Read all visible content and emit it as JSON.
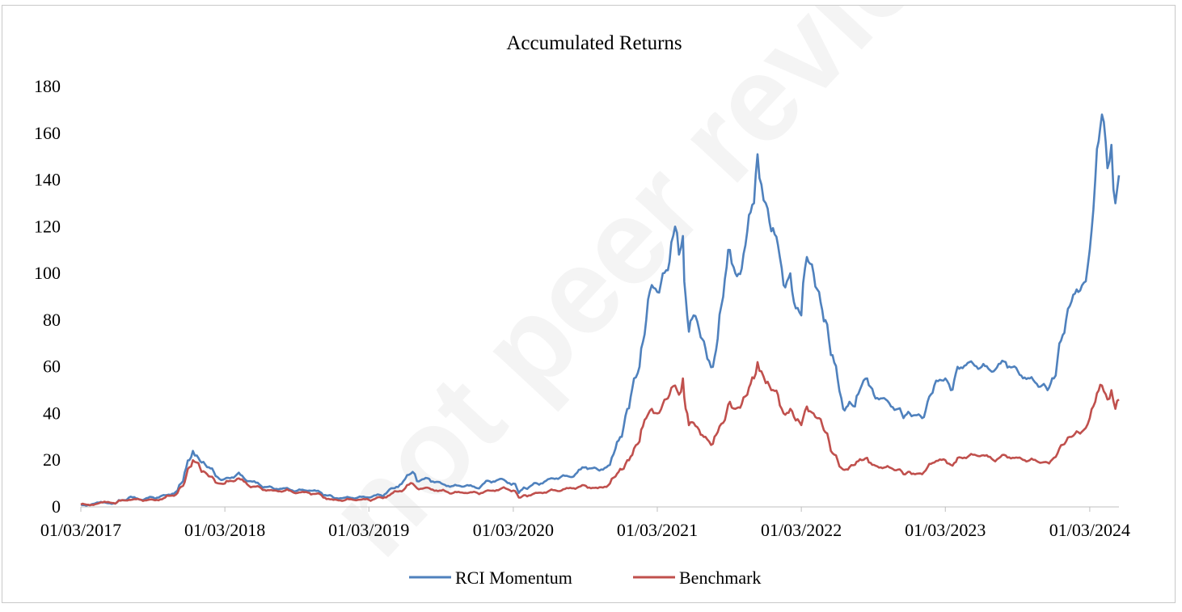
{
  "watermark": "not peer reviewed",
  "chart_data": {
    "type": "line",
    "title": "Accumulated Returns",
    "xlabel": "",
    "ylabel": "",
    "x_range": [
      "01/03/2017",
      "14/05/2024"
    ],
    "ylim": [
      0,
      180
    ],
    "y_ticks": [
      0,
      20,
      40,
      60,
      80,
      100,
      120,
      140,
      160,
      180
    ],
    "x_tick_labels": [
      "01/03/2017",
      "01/03/2018",
      "01/03/2019",
      "01/03/2020",
      "01/03/2021",
      "01/03/2022",
      "01/03/2023",
      "01/03/2024"
    ],
    "grid": false,
    "legend": "bottom",
    "colors": {
      "RCI Momentum": "#4f81bd",
      "Benchmark": "#c0504d"
    },
    "series": [
      {
        "name": "RCI Momentum",
        "points": [
          [
            "01/03/2017",
            1
          ],
          [
            "01/06/2017",
            2
          ],
          [
            "01/07/2017",
            4
          ],
          [
            "01/08/2017",
            3
          ],
          [
            "01/09/2017",
            4
          ],
          [
            "01/10/2017",
            5
          ],
          [
            "01/11/2017",
            7
          ],
          [
            "15/11/2017",
            11
          ],
          [
            "01/12/2017",
            20
          ],
          [
            "10/12/2017",
            24
          ],
          [
            "20/12/2017",
            22
          ],
          [
            "01/01/2018",
            19
          ],
          [
            "15/01/2018",
            17
          ],
          [
            "01/02/2018",
            15
          ],
          [
            "15/02/2018",
            12
          ],
          [
            "01/03/2018",
            12
          ],
          [
            "01/04/2018",
            14
          ],
          [
            "01/05/2018",
            11
          ],
          [
            "01/06/2018",
            9
          ],
          [
            "01/07/2018",
            8
          ],
          [
            "01/08/2018",
            8
          ],
          [
            "01/09/2018",
            7
          ],
          [
            "01/10/2018",
            7
          ],
          [
            "01/11/2018",
            6
          ],
          [
            "01/12/2018",
            4
          ],
          [
            "01/01/2019",
            4
          ],
          [
            "01/02/2019",
            4
          ],
          [
            "01/03/2019",
            4
          ],
          [
            "01/04/2019",
            5
          ],
          [
            "01/05/2019",
            8
          ],
          [
            "01/06/2019",
            12
          ],
          [
            "20/06/2019",
            15
          ],
          [
            "01/07/2019",
            11
          ],
          [
            "01/08/2019",
            12
          ],
          [
            "01/09/2019",
            10
          ],
          [
            "01/10/2019",
            9
          ],
          [
            "01/11/2019",
            9
          ],
          [
            "01/12/2019",
            8
          ],
          [
            "01/01/2020",
            11
          ],
          [
            "01/02/2020",
            12
          ],
          [
            "01/03/2020",
            10
          ],
          [
            "15/03/2020",
            6
          ],
          [
            "01/04/2020",
            8
          ],
          [
            "01/05/2020",
            10
          ],
          [
            "01/06/2020",
            12
          ],
          [
            "01/07/2020",
            13
          ],
          [
            "01/08/2020",
            13
          ],
          [
            "01/09/2020",
            17
          ],
          [
            "01/10/2020",
            16
          ],
          [
            "01/11/2020",
            18
          ],
          [
            "15/11/2020",
            25
          ],
          [
            "01/12/2020",
            30
          ],
          [
            "15/12/2020",
            42
          ],
          [
            "01/01/2021",
            55
          ],
          [
            "15/01/2021",
            60
          ],
          [
            "01/02/2021",
            80
          ],
          [
            "15/02/2021",
            95
          ],
          [
            "01/03/2021",
            92
          ],
          [
            "15/03/2021",
            100
          ],
          [
            "01/04/2021",
            105
          ],
          [
            "15/04/2021",
            120
          ],
          [
            "25/04/2021",
            108
          ],
          [
            "05/05/2021",
            116
          ],
          [
            "12/05/2021",
            90
          ],
          [
            "20/05/2021",
            75
          ],
          [
            "01/06/2021",
            82
          ],
          [
            "15/06/2021",
            76
          ],
          [
            "01/07/2021",
            68
          ],
          [
            "20/07/2021",
            60
          ],
          [
            "01/08/2021",
            72
          ],
          [
            "15/08/2021",
            90
          ],
          [
            "01/09/2021",
            110
          ],
          [
            "15/09/2021",
            100
          ],
          [
            "01/10/2021",
            102
          ],
          [
            "15/10/2021",
            118
          ],
          [
            "01/11/2021",
            130
          ],
          [
            "10/11/2021",
            151
          ],
          [
            "20/11/2021",
            138
          ],
          [
            "01/12/2021",
            130
          ],
          [
            "15/12/2021",
            118
          ],
          [
            "01/01/2022",
            112
          ],
          [
            "15/01/2022",
            95
          ],
          [
            "01/02/2022",
            100
          ],
          [
            "15/02/2022",
            85
          ],
          [
            "01/03/2022",
            82
          ],
          [
            "15/03/2022",
            107
          ],
          [
            "01/04/2022",
            100
          ],
          [
            "15/04/2022",
            92
          ],
          [
            "01/05/2022",
            80
          ],
          [
            "15/05/2022",
            65
          ],
          [
            "01/06/2022",
            55
          ],
          [
            "15/06/2022",
            42
          ],
          [
            "01/07/2022",
            45
          ],
          [
            "15/07/2022",
            43
          ],
          [
            "01/08/2022",
            52
          ],
          [
            "15/08/2022",
            55
          ],
          [
            "01/09/2022",
            48
          ],
          [
            "01/10/2022",
            46
          ],
          [
            "01/11/2022",
            42
          ],
          [
            "15/11/2022",
            38
          ],
          [
            "01/12/2022",
            40
          ],
          [
            "01/01/2023",
            38
          ],
          [
            "15/01/2023",
            45
          ],
          [
            "01/02/2023",
            52
          ],
          [
            "01/03/2023",
            55
          ],
          [
            "15/03/2023",
            50
          ],
          [
            "01/04/2023",
            60
          ],
          [
            "01/05/2023",
            62
          ],
          [
            "01/06/2023",
            60
          ],
          [
            "01/07/2023",
            58
          ],
          [
            "01/08/2023",
            62
          ],
          [
            "01/09/2023",
            58
          ],
          [
            "01/10/2023",
            55
          ],
          [
            "01/11/2023",
            52
          ],
          [
            "15/11/2023",
            50
          ],
          [
            "01/12/2023",
            55
          ],
          [
            "15/12/2023",
            70
          ],
          [
            "01/01/2024",
            80
          ],
          [
            "15/01/2024",
            88
          ],
          [
            "01/02/2024",
            92
          ],
          [
            "15/02/2024",
            96
          ],
          [
            "01/03/2024",
            110
          ],
          [
            "15/03/2024",
            140
          ],
          [
            "01/04/2024",
            168
          ],
          [
            "15/04/2024",
            145
          ],
          [
            "25/04/2024",
            155
          ],
          [
            "05/05/2024",
            130
          ],
          [
            "14/05/2024",
            142
          ]
        ]
      },
      {
        "name": "Benchmark",
        "points": [
          [
            "01/03/2017",
            1
          ],
          [
            "01/06/2017",
            2
          ],
          [
            "01/07/2017",
            3
          ],
          [
            "01/08/2017",
            3
          ],
          [
            "01/09/2017",
            3
          ],
          [
            "01/10/2017",
            4
          ],
          [
            "01/11/2017",
            6
          ],
          [
            "15/11/2017",
            9
          ],
          [
            "01/12/2017",
            17
          ],
          [
            "10/12/2017",
            20
          ],
          [
            "20/12/2017",
            19
          ],
          [
            "01/01/2018",
            15
          ],
          [
            "15/01/2018",
            14
          ],
          [
            "01/02/2018",
            12
          ],
          [
            "15/02/2018",
            10
          ],
          [
            "01/03/2018",
            10
          ],
          [
            "01/04/2018",
            12
          ],
          [
            "01/05/2018",
            9
          ],
          [
            "01/06/2018",
            8
          ],
          [
            "01/07/2018",
            7
          ],
          [
            "01/08/2018",
            7
          ],
          [
            "01/09/2018",
            6
          ],
          [
            "01/10/2018",
            6
          ],
          [
            "01/11/2018",
            5
          ],
          [
            "01/12/2018",
            3
          ],
          [
            "01/01/2019",
            3
          ],
          [
            "01/02/2019",
            3
          ],
          [
            "01/03/2019",
            3
          ],
          [
            "01/04/2019",
            4
          ],
          [
            "01/05/2019",
            6
          ],
          [
            "01/06/2019",
            8
          ],
          [
            "20/06/2019",
            10
          ],
          [
            "01/07/2019",
            8
          ],
          [
            "01/08/2019",
            8
          ],
          [
            "01/09/2019",
            7
          ],
          [
            "01/10/2019",
            6
          ],
          [
            "01/11/2019",
            6
          ],
          [
            "01/12/2019",
            6
          ],
          [
            "01/01/2020",
            7
          ],
          [
            "01/02/2020",
            8
          ],
          [
            "01/03/2020",
            7
          ],
          [
            "15/03/2020",
            4
          ],
          [
            "01/04/2020",
            5
          ],
          [
            "01/05/2020",
            6
          ],
          [
            "01/06/2020",
            7
          ],
          [
            "01/07/2020",
            7
          ],
          [
            "01/08/2020",
            8
          ],
          [
            "01/09/2020",
            9
          ],
          [
            "01/10/2020",
            8
          ],
          [
            "01/11/2020",
            10
          ],
          [
            "15/11/2020",
            13
          ],
          [
            "01/12/2020",
            16
          ],
          [
            "15/12/2020",
            20
          ],
          [
            "01/01/2021",
            25
          ],
          [
            "15/01/2021",
            28
          ],
          [
            "01/02/2021",
            38
          ],
          [
            "15/02/2021",
            42
          ],
          [
            "01/03/2021",
            40
          ],
          [
            "15/03/2021",
            44
          ],
          [
            "01/04/2021",
            48
          ],
          [
            "15/04/2021",
            52
          ],
          [
            "25/04/2021",
            48
          ],
          [
            "05/05/2021",
            55
          ],
          [
            "12/05/2021",
            42
          ],
          [
            "20/05/2021",
            35
          ],
          [
            "01/06/2021",
            36
          ],
          [
            "15/06/2021",
            33
          ],
          [
            "01/07/2021",
            30
          ],
          [
            "20/07/2021",
            27
          ],
          [
            "01/08/2021",
            32
          ],
          [
            "15/08/2021",
            36
          ],
          [
            "01/09/2021",
            45
          ],
          [
            "15/09/2021",
            42
          ],
          [
            "01/10/2021",
            44
          ],
          [
            "15/10/2021",
            48
          ],
          [
            "01/11/2021",
            55
          ],
          [
            "10/11/2021",
            62
          ],
          [
            "20/11/2021",
            58
          ],
          [
            "01/12/2021",
            53
          ],
          [
            "15/12/2021",
            50
          ],
          [
            "01/01/2022",
            48
          ],
          [
            "15/01/2022",
            40
          ],
          [
            "01/02/2022",
            42
          ],
          [
            "15/02/2022",
            37
          ],
          [
            "01/03/2022",
            35
          ],
          [
            "15/03/2022",
            43
          ],
          [
            "01/04/2022",
            40
          ],
          [
            "15/04/2022",
            38
          ],
          [
            "01/05/2022",
            32
          ],
          [
            "15/05/2022",
            24
          ],
          [
            "01/06/2022",
            20
          ],
          [
            "15/06/2022",
            16
          ],
          [
            "01/07/2022",
            17
          ],
          [
            "15/07/2022",
            18
          ],
          [
            "01/08/2022",
            20
          ],
          [
            "15/08/2022",
            21
          ],
          [
            "01/09/2022",
            18
          ],
          [
            "01/10/2022",
            17
          ],
          [
            "01/11/2022",
            16
          ],
          [
            "15/11/2022",
            14
          ],
          [
            "01/12/2022",
            15
          ],
          [
            "01/01/2023",
            14
          ],
          [
            "15/01/2023",
            17
          ],
          [
            "01/02/2023",
            19
          ],
          [
            "01/03/2023",
            20
          ],
          [
            "15/03/2023",
            18
          ],
          [
            "01/04/2023",
            21
          ],
          [
            "01/05/2023",
            22
          ],
          [
            "01/06/2023",
            22
          ],
          [
            "01/07/2023",
            20
          ],
          [
            "01/08/2023",
            22
          ],
          [
            "01/09/2023",
            21
          ],
          [
            "01/10/2023",
            20
          ],
          [
            "01/11/2023",
            19
          ],
          [
            "15/11/2023",
            19
          ],
          [
            "01/12/2023",
            21
          ],
          [
            "15/12/2023",
            25
          ],
          [
            "01/01/2024",
            28
          ],
          [
            "15/01/2024",
            30
          ],
          [
            "01/02/2024",
            32
          ],
          [
            "15/02/2024",
            33
          ],
          [
            "01/03/2024",
            38
          ],
          [
            "15/03/2024",
            45
          ],
          [
            "01/04/2024",
            52
          ],
          [
            "15/04/2024",
            46
          ],
          [
            "25/04/2024",
            50
          ],
          [
            "05/05/2024",
            42
          ],
          [
            "14/05/2024",
            46
          ]
        ]
      }
    ]
  }
}
